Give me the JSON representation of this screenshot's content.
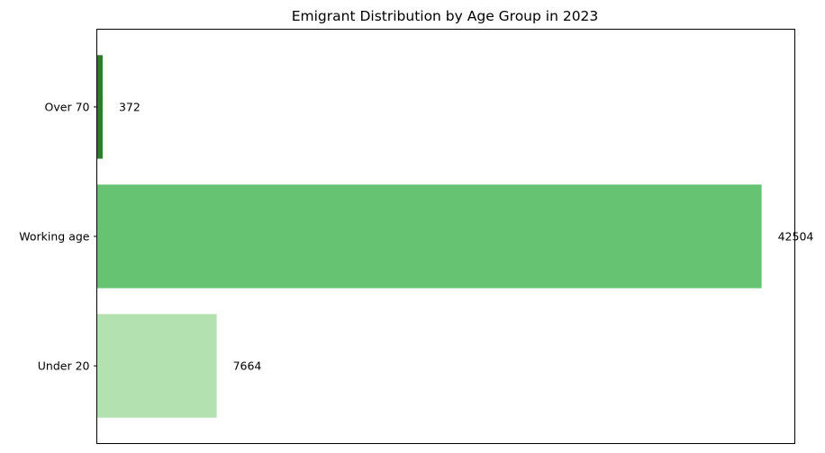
{
  "chart_data": {
    "type": "bar",
    "orientation": "horizontal",
    "title": "Emigrant Distribution by Age Group in 2023",
    "xlabel": "",
    "ylabel": "",
    "categories": [
      "Under 20",
      "Working age",
      "Over 70"
    ],
    "values": [
      7664,
      42504,
      372
    ],
    "data_labels": [
      "7664",
      "42504",
      "372"
    ],
    "colors": [
      "#b3e1b0",
      "#66c371",
      "#2b7d2c"
    ],
    "xlim": [
      0,
      44629
    ],
    "x_ticks_visible": false,
    "grid": false,
    "legend": "none"
  }
}
